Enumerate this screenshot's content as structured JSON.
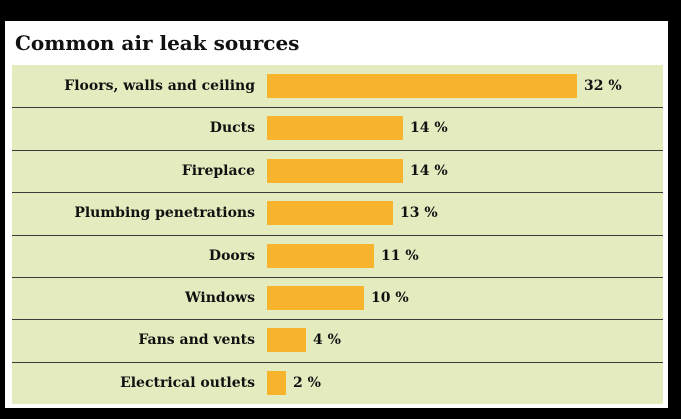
{
  "chart_data": {
    "type": "bar",
    "orientation": "horizontal",
    "title": "Common air leak sources",
    "categories": [
      "Floors, walls and ceiling",
      "Ducts",
      "Fireplace",
      "Plumbing penetrations",
      "Doors",
      "Windows",
      "Fans and vents",
      "Electrical outlets"
    ],
    "values": [
      32,
      14,
      14,
      13,
      11,
      10,
      4,
      2
    ],
    "value_labels": [
      "32 %",
      "14 %",
      "14 %",
      "13 %",
      "11 %",
      "10 %",
      "4 %",
      "2 %"
    ],
    "xlim": [
      0,
      32
    ],
    "grid": false,
    "colors": {
      "bar": "#f9b42e",
      "background": "#e3ebbf",
      "divider": "#3a3a3a"
    }
  }
}
